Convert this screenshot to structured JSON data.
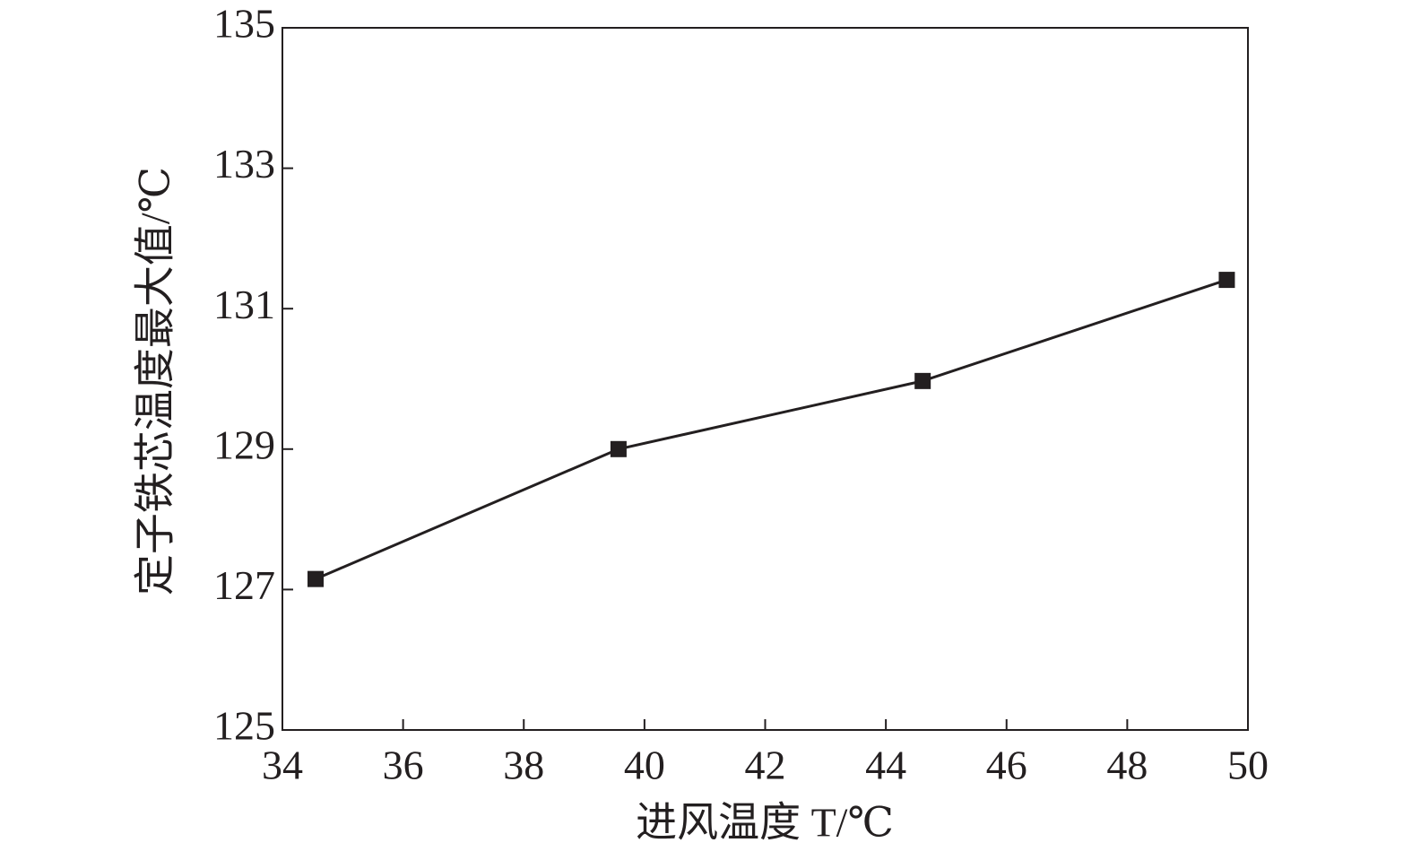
{
  "chart_data": {
    "type": "line",
    "x_label": "进风温度 T/℃",
    "y_label": "定子铁芯温度最大值/℃",
    "x": [
      34.55,
      39.57,
      44.61,
      49.65
    ],
    "series": [
      {
        "color": "#231f20",
        "values": [
          127.15,
          129.0,
          129.97,
          131.41
        ]
      }
    ],
    "xlim": [
      34,
      50
    ],
    "xticks": [
      34,
      36,
      38,
      40,
      42,
      44,
      46,
      48,
      50
    ],
    "ylim": [
      125,
      135
    ],
    "yticks": [
      125,
      127,
      129,
      131,
      133,
      135
    ],
    "grid": false
  }
}
